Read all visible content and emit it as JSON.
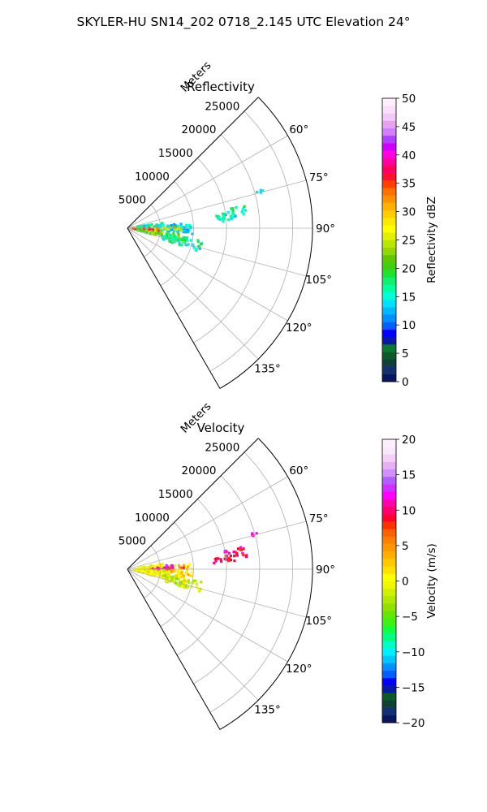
{
  "figure": {
    "title": "SKYLER-HU  SN14_202  0718_2.145 UTC Elevation 24°"
  },
  "chart_data": [
    {
      "type": "heatmap",
      "subtype": "polar-sector",
      "title": "Reflectivity",
      "range_label": "Meters",
      "range_ticks": [
        5000,
        10000,
        15000,
        20000,
        25000
      ],
      "range_max": 28000,
      "azimuth_range_deg": [
        45,
        150
      ],
      "azimuth_ticks": [
        60,
        75,
        90,
        105,
        120,
        135
      ],
      "azimuth_tick_labels": [
        "60°",
        "75°",
        "90°",
        "105°",
        "120°",
        "135°"
      ],
      "grid": true,
      "colorbar": {
        "label": "Reflectivity dBZ",
        "min": 0,
        "max": 50,
        "ticks": [
          0,
          5,
          10,
          15,
          20,
          25,
          30,
          35,
          40,
          45,
          50
        ],
        "tick_labels": [
          "0",
          "5",
          "10",
          "15",
          "20",
          "25",
          "30",
          "35",
          "40",
          "45",
          "50"
        ],
        "colors": [
          "#0a1560",
          "#14306e",
          "#113f3a",
          "#0c5a2a",
          "#0a7a30",
          "#0a1aa0",
          "#0000ff",
          "#0060ff",
          "#0090ff",
          "#00b8ff",
          "#00e0ff",
          "#00ffd6",
          "#00ffa0",
          "#10f070",
          "#20e030",
          "#40d010",
          "#60c800",
          "#90d800",
          "#b8e800",
          "#e0f000",
          "#ffff00",
          "#ffe800",
          "#ffcc00",
          "#ffb000",
          "#ff9000",
          "#ff7000",
          "#ff4000",
          "#ff1030",
          "#ff0060",
          "#ff00a0",
          "#ff00e0",
          "#d000ff",
          "#b040ff",
          "#d080ff",
          "#e8a0f0",
          "#f4c8f8",
          "#fbe0fb",
          "#ffeeff"
        ]
      },
      "echo_cells": [
        {
          "az": [
            85.5,
            96
          ],
          "r": [
            1500,
            10000
          ],
          "value": 14
        },
        {
          "az": [
            89,
            93
          ],
          "r": [
            2000,
            8500
          ],
          "value": 24
        },
        {
          "az": [
            90,
            97
          ],
          "r": [
            800,
            4800
          ],
          "value": 34
        },
        {
          "az": [
            93,
            97
          ],
          "r": [
            1200,
            3800
          ],
          "value": 38
        },
        {
          "az": [
            96,
            104
          ],
          "r": [
            1500,
            8800
          ],
          "value": 22
        },
        {
          "az": [
            99,
            108
          ],
          "r": [
            5500,
            11500
          ],
          "value": 16
        },
        {
          "az": [
            81,
            86
          ],
          "r": [
            1500,
            5500
          ],
          "value": 16
        },
        {
          "az": [
            79,
            84
          ],
          "r": [
            14500,
            18500
          ],
          "value": 18
        },
        {
          "az": [
            82,
            86
          ],
          "r": [
            13000,
            16500
          ],
          "value": 15
        },
        {
          "az": [
            74,
            76
          ],
          "r": [
            19500,
            21500
          ],
          "value": 15
        }
      ]
    },
    {
      "type": "heatmap",
      "subtype": "polar-sector",
      "title": "Velocity",
      "range_label": "Meters",
      "range_ticks": [
        5000,
        10000,
        15000,
        20000,
        25000
      ],
      "range_max": 28000,
      "azimuth_range_deg": [
        45,
        150
      ],
      "azimuth_ticks": [
        60,
        75,
        90,
        105,
        120,
        135
      ],
      "azimuth_tick_labels": [
        "60°",
        "75°",
        "90°",
        "105°",
        "120°",
        "135°"
      ],
      "grid": true,
      "colorbar": {
        "label": "Velocity (m/s)",
        "min": -20,
        "max": 20,
        "ticks": [
          -20,
          -15,
          -10,
          -5,
          0,
          5,
          10,
          15,
          20
        ],
        "tick_labels": [
          "−20",
          "−15",
          "−10",
          "−5",
          "0",
          "5",
          "10",
          "15",
          "20"
        ],
        "colors": [
          "#0a1560",
          "#14306e",
          "#113f3a",
          "#0c5a2a",
          "#0a1aa0",
          "#0000ff",
          "#0060ff",
          "#0090ff",
          "#00c8ff",
          "#00f0ff",
          "#00ffc0",
          "#00ff80",
          "#10ff40",
          "#40f010",
          "#60e800",
          "#90e000",
          "#b0e800",
          "#d0f000",
          "#f0f800",
          "#ffff00",
          "#ffe000",
          "#ffc800",
          "#ffb000",
          "#ff9800",
          "#ff8000",
          "#ff6000",
          "#ff3000",
          "#ff0030",
          "#ff0070",
          "#ff00b0",
          "#ff00ff",
          "#d030ff",
          "#b060ff",
          "#d090f8",
          "#e8b0f0",
          "#f4d0f8",
          "#fae8fb",
          "#ffeeff"
        ]
      },
      "echo_cells": [
        {
          "az": [
            85.5,
            96
          ],
          "r": [
            1500,
            10000
          ],
          "value": 2
        },
        {
          "az": [
            87,
            90
          ],
          "r": [
            3500,
            8500
          ],
          "value": 9
        },
        {
          "az": [
            84,
            87
          ],
          "r": [
            4500,
            7000
          ],
          "value": 12
        },
        {
          "az": [
            92,
            97
          ],
          "r": [
            1000,
            6000
          ],
          "value": -1
        },
        {
          "az": [
            96,
            104
          ],
          "r": [
            1500,
            8800
          ],
          "value": 1
        },
        {
          "az": [
            99,
            108
          ],
          "r": [
            5500,
            11500
          ],
          "value": -2
        },
        {
          "az": [
            81,
            86
          ],
          "r": [
            1500,
            5500
          ],
          "value": 0
        },
        {
          "az": [
            79,
            84
          ],
          "r": [
            14500,
            18500
          ],
          "value": 10
        },
        {
          "az": [
            82,
            86
          ],
          "r": [
            13000,
            16500
          ],
          "value": 9
        },
        {
          "az": [
            74,
            76
          ],
          "r": [
            19500,
            21500
          ],
          "value": 11
        }
      ]
    }
  ]
}
